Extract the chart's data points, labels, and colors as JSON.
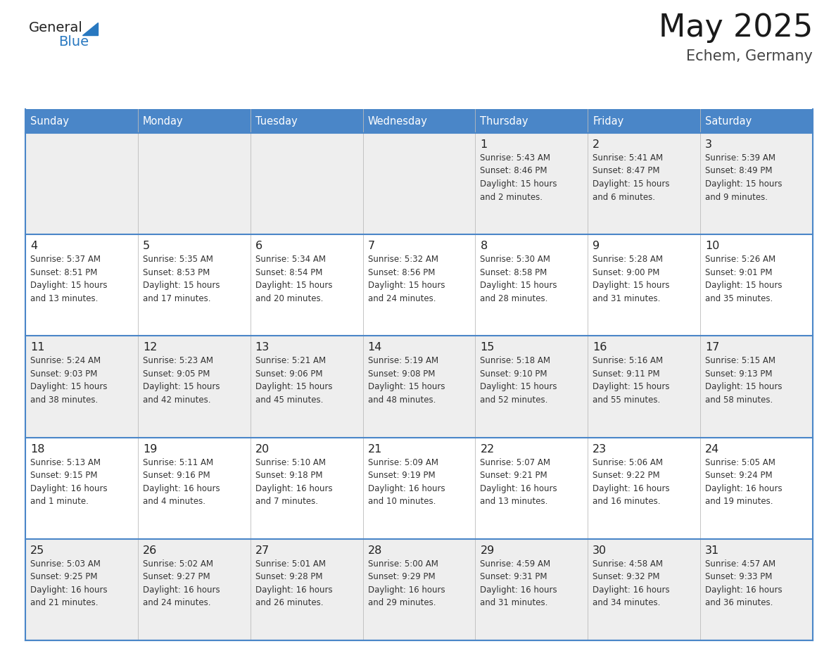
{
  "title": "May 2025",
  "subtitle": "Echem, Germany",
  "header_color": "#4a86c8",
  "header_text_color": "#ffffff",
  "days_of_week": [
    "Sunday",
    "Monday",
    "Tuesday",
    "Wednesday",
    "Thursday",
    "Friday",
    "Saturday"
  ],
  "bg_color": "#ffffff",
  "row_bg_colors": [
    "#eeeeee",
    "#ffffff",
    "#eeeeee",
    "#ffffff",
    "#eeeeee"
  ],
  "text_color": "#333333",
  "line_color": "#4a86c8",
  "day_num_color": "#222222",
  "info_text_color": "#333333",
  "calendar": [
    [
      {
        "day": "",
        "info": ""
      },
      {
        "day": "",
        "info": ""
      },
      {
        "day": "",
        "info": ""
      },
      {
        "day": "",
        "info": ""
      },
      {
        "day": "1",
        "info": "Sunrise: 5:43 AM\nSunset: 8:46 PM\nDaylight: 15 hours\nand 2 minutes."
      },
      {
        "day": "2",
        "info": "Sunrise: 5:41 AM\nSunset: 8:47 PM\nDaylight: 15 hours\nand 6 minutes."
      },
      {
        "day": "3",
        "info": "Sunrise: 5:39 AM\nSunset: 8:49 PM\nDaylight: 15 hours\nand 9 minutes."
      }
    ],
    [
      {
        "day": "4",
        "info": "Sunrise: 5:37 AM\nSunset: 8:51 PM\nDaylight: 15 hours\nand 13 minutes."
      },
      {
        "day": "5",
        "info": "Sunrise: 5:35 AM\nSunset: 8:53 PM\nDaylight: 15 hours\nand 17 minutes."
      },
      {
        "day": "6",
        "info": "Sunrise: 5:34 AM\nSunset: 8:54 PM\nDaylight: 15 hours\nand 20 minutes."
      },
      {
        "day": "7",
        "info": "Sunrise: 5:32 AM\nSunset: 8:56 PM\nDaylight: 15 hours\nand 24 minutes."
      },
      {
        "day": "8",
        "info": "Sunrise: 5:30 AM\nSunset: 8:58 PM\nDaylight: 15 hours\nand 28 minutes."
      },
      {
        "day": "9",
        "info": "Sunrise: 5:28 AM\nSunset: 9:00 PM\nDaylight: 15 hours\nand 31 minutes."
      },
      {
        "day": "10",
        "info": "Sunrise: 5:26 AM\nSunset: 9:01 PM\nDaylight: 15 hours\nand 35 minutes."
      }
    ],
    [
      {
        "day": "11",
        "info": "Sunrise: 5:24 AM\nSunset: 9:03 PM\nDaylight: 15 hours\nand 38 minutes."
      },
      {
        "day": "12",
        "info": "Sunrise: 5:23 AM\nSunset: 9:05 PM\nDaylight: 15 hours\nand 42 minutes."
      },
      {
        "day": "13",
        "info": "Sunrise: 5:21 AM\nSunset: 9:06 PM\nDaylight: 15 hours\nand 45 minutes."
      },
      {
        "day": "14",
        "info": "Sunrise: 5:19 AM\nSunset: 9:08 PM\nDaylight: 15 hours\nand 48 minutes."
      },
      {
        "day": "15",
        "info": "Sunrise: 5:18 AM\nSunset: 9:10 PM\nDaylight: 15 hours\nand 52 minutes."
      },
      {
        "day": "16",
        "info": "Sunrise: 5:16 AM\nSunset: 9:11 PM\nDaylight: 15 hours\nand 55 minutes."
      },
      {
        "day": "17",
        "info": "Sunrise: 5:15 AM\nSunset: 9:13 PM\nDaylight: 15 hours\nand 58 minutes."
      }
    ],
    [
      {
        "day": "18",
        "info": "Sunrise: 5:13 AM\nSunset: 9:15 PM\nDaylight: 16 hours\nand 1 minute."
      },
      {
        "day": "19",
        "info": "Sunrise: 5:11 AM\nSunset: 9:16 PM\nDaylight: 16 hours\nand 4 minutes."
      },
      {
        "day": "20",
        "info": "Sunrise: 5:10 AM\nSunset: 9:18 PM\nDaylight: 16 hours\nand 7 minutes."
      },
      {
        "day": "21",
        "info": "Sunrise: 5:09 AM\nSunset: 9:19 PM\nDaylight: 16 hours\nand 10 minutes."
      },
      {
        "day": "22",
        "info": "Sunrise: 5:07 AM\nSunset: 9:21 PM\nDaylight: 16 hours\nand 13 minutes."
      },
      {
        "day": "23",
        "info": "Sunrise: 5:06 AM\nSunset: 9:22 PM\nDaylight: 16 hours\nand 16 minutes."
      },
      {
        "day": "24",
        "info": "Sunrise: 5:05 AM\nSunset: 9:24 PM\nDaylight: 16 hours\nand 19 minutes."
      }
    ],
    [
      {
        "day": "25",
        "info": "Sunrise: 5:03 AM\nSunset: 9:25 PM\nDaylight: 16 hours\nand 21 minutes."
      },
      {
        "day": "26",
        "info": "Sunrise: 5:02 AM\nSunset: 9:27 PM\nDaylight: 16 hours\nand 24 minutes."
      },
      {
        "day": "27",
        "info": "Sunrise: 5:01 AM\nSunset: 9:28 PM\nDaylight: 16 hours\nand 26 minutes."
      },
      {
        "day": "28",
        "info": "Sunrise: 5:00 AM\nSunset: 9:29 PM\nDaylight: 16 hours\nand 29 minutes."
      },
      {
        "day": "29",
        "info": "Sunrise: 4:59 AM\nSunset: 9:31 PM\nDaylight: 16 hours\nand 31 minutes."
      },
      {
        "day": "30",
        "info": "Sunrise: 4:58 AM\nSunset: 9:32 PM\nDaylight: 16 hours\nand 34 minutes."
      },
      {
        "day": "31",
        "info": "Sunrise: 4:57 AM\nSunset: 9:33 PM\nDaylight: 16 hours\nand 36 minutes."
      }
    ]
  ],
  "logo_general_color": "#222222",
  "logo_blue_color": "#2878c0",
  "logo_triangle_color": "#2878c0"
}
